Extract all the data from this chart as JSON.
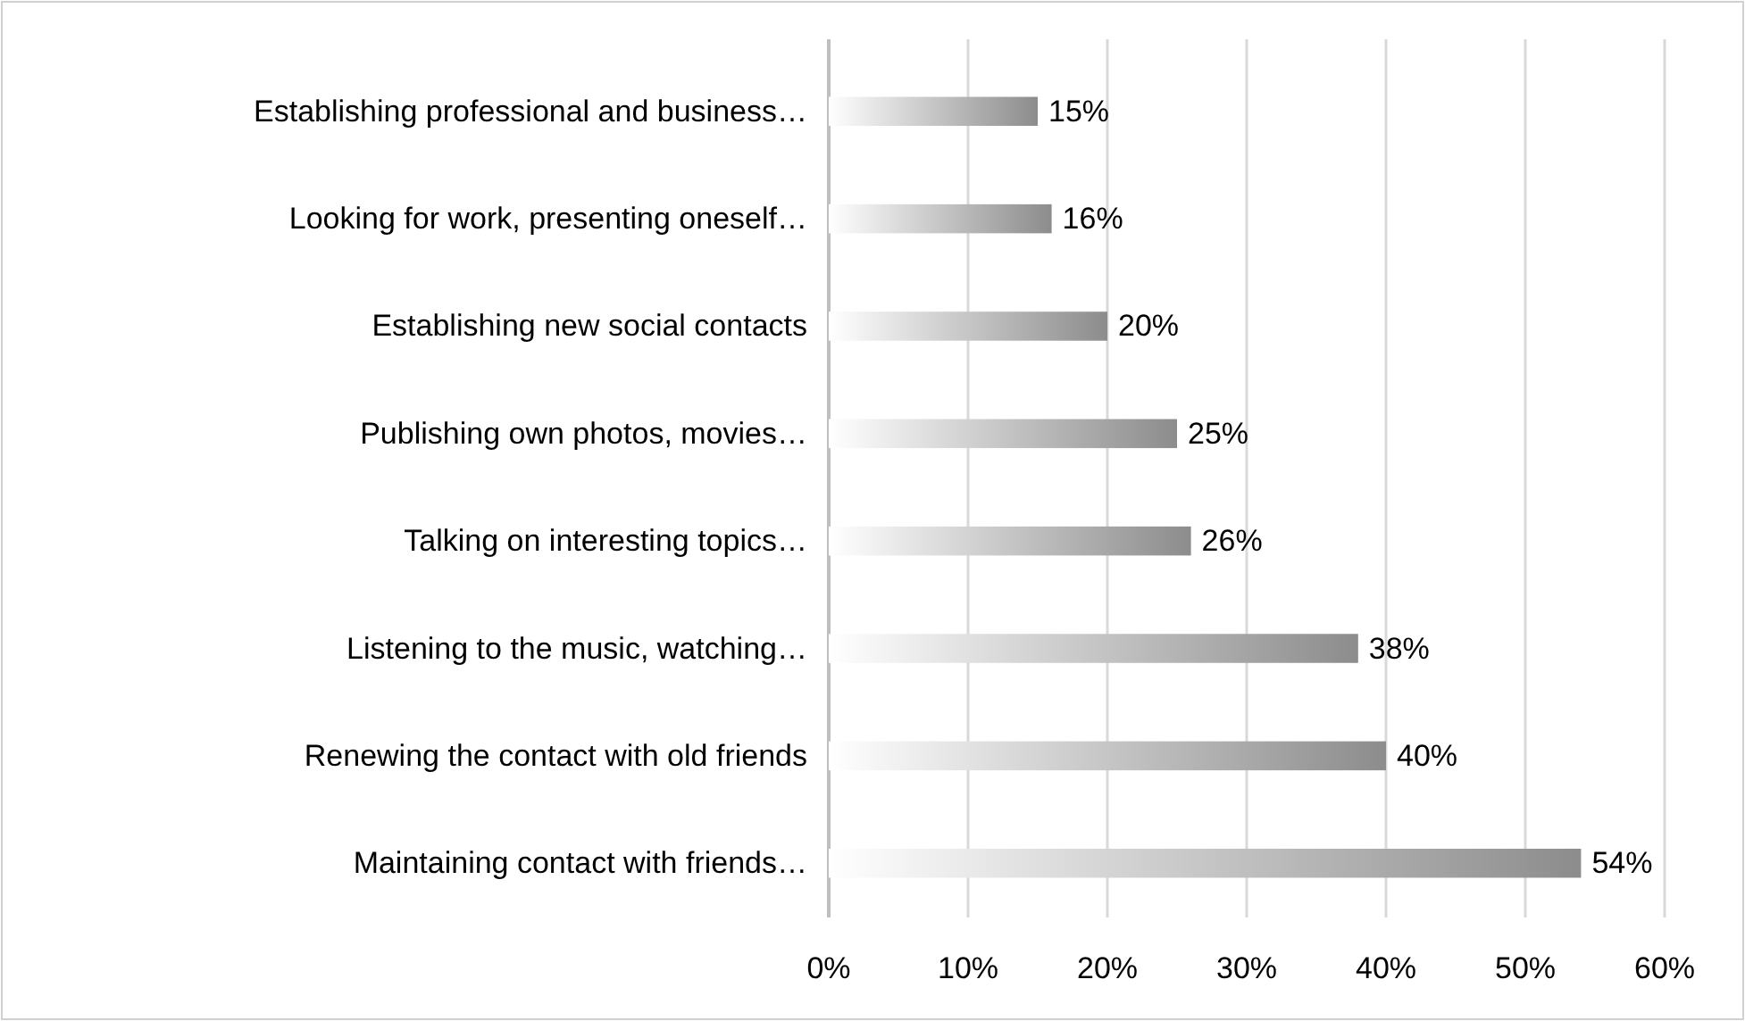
{
  "chart_data": {
    "type": "bar",
    "orientation": "horizontal",
    "categories": [
      "Establishing professional and business…",
      "Looking for work, presenting oneself…",
      "Establishing new social contacts",
      "Publishing own photos, movies…",
      "Talking on interesting topics…",
      "Listening to the music, watching…",
      "Renewing the contact with old friends",
      "Maintaining contact with friends…"
    ],
    "values": [
      15,
      16,
      20,
      25,
      26,
      38,
      40,
      54
    ],
    "value_labels": [
      "15%",
      "16%",
      "20%",
      "25%",
      "26%",
      "38%",
      "40%",
      "54%"
    ],
    "color": "#8c8c8c",
    "xlim": [
      0,
      60
    ],
    "xticks": [
      {
        "value": 0,
        "label": "0%"
      },
      {
        "value": 10,
        "label": "10%"
      },
      {
        "value": 20,
        "label": "20%"
      },
      {
        "value": 30,
        "label": "30%"
      },
      {
        "value": 40,
        "label": "40%"
      },
      {
        "value": 50,
        "label": "50%"
      },
      {
        "value": 60,
        "label": "60%"
      }
    ],
    "grid": "x"
  }
}
